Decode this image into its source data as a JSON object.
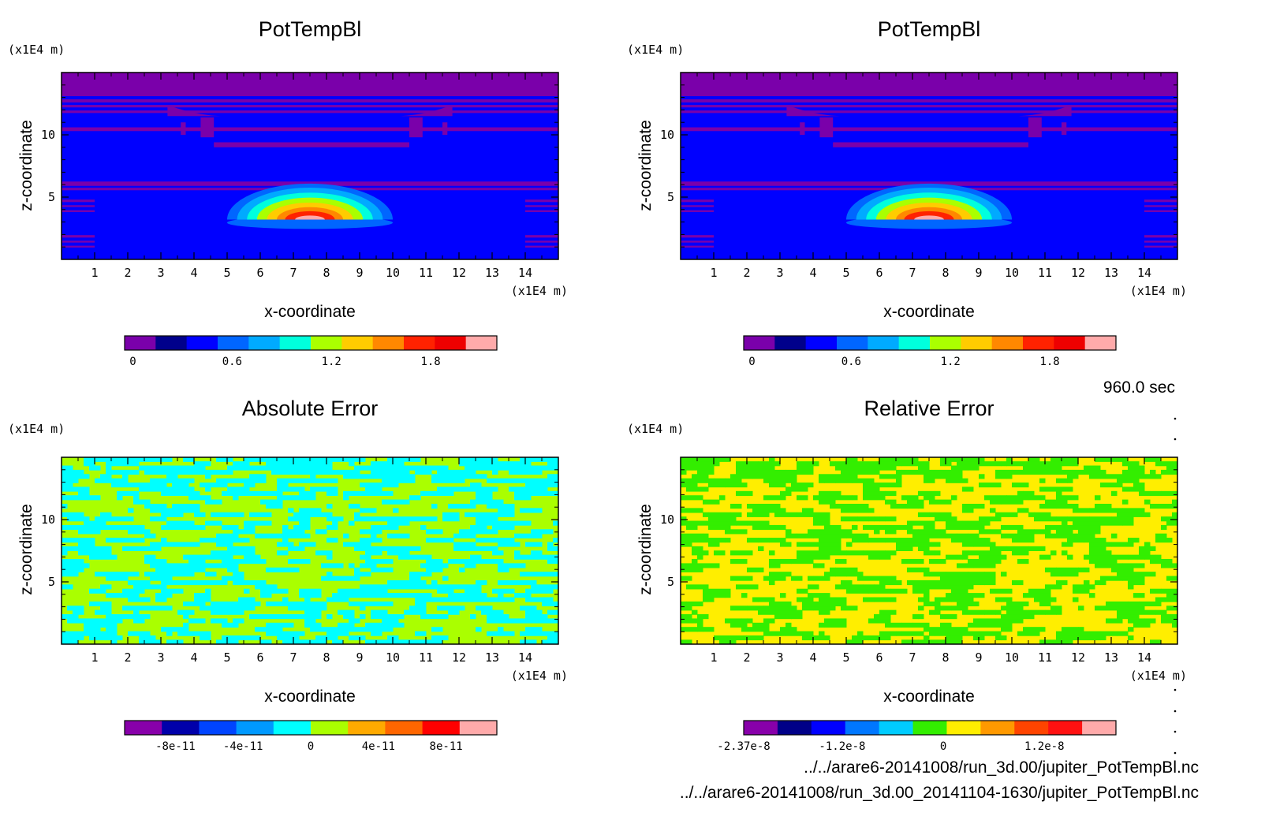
{
  "chart_data": [
    {
      "type": "heatmap",
      "title": "PotTempBl",
      "xlabel": "x-coordinate",
      "ylabel": "z-coordinate",
      "x_unit": "(x1E4 m)",
      "y_unit": "(x1E4 m)",
      "xlim": [
        0,
        15
      ],
      "ylim": [
        0,
        15
      ],
      "x_ticks": [
        1,
        2,
        3,
        4,
        5,
        6,
        7,
        8,
        9,
        10,
        11,
        12,
        13,
        14
      ],
      "y_ticks": [
        5,
        10
      ],
      "field": "potential temperature anomaly with a warm bubble near x=7.5, z=3.8",
      "bubble_center": [
        7.5,
        3.8
      ],
      "colorbar": {
        "labels": [
          "0",
          "0.6",
          "1.2",
          "1.8"
        ],
        "label_values": [
          0,
          0.6,
          1.2,
          1.8
        ],
        "range": [
          -0.05,
          2.2
        ],
        "colors": [
          "#7a00aa",
          "#00008b",
          "#0000ff",
          "#0066ff",
          "#00aaff",
          "#00ffdd",
          "#aaff00",
          "#ffcc00",
          "#ff8800",
          "#ff2200",
          "#ee0000",
          "#ffaaaa"
        ]
      }
    },
    {
      "type": "heatmap",
      "title": "PotTempBl",
      "xlabel": "x-coordinate",
      "ylabel": "z-coordinate",
      "x_unit": "(x1E4 m)",
      "y_unit": "(x1E4 m)",
      "xlim": [
        0,
        15
      ],
      "ylim": [
        0,
        15
      ],
      "x_ticks": [
        1,
        2,
        3,
        4,
        5,
        6,
        7,
        8,
        9,
        10,
        11,
        12,
        13,
        14
      ],
      "y_ticks": [
        5,
        10
      ],
      "field": "potential temperature anomaly with a warm bubble near x=7.5, z=3.8",
      "bubble_center": [
        7.5,
        3.8
      ],
      "colorbar": {
        "labels": [
          "0",
          "0.6",
          "1.2",
          "1.8"
        ],
        "label_values": [
          0,
          0.6,
          1.2,
          1.8
        ],
        "range": [
          -0.05,
          2.2
        ],
        "colors": [
          "#7a00aa",
          "#00008b",
          "#0000ff",
          "#0066ff",
          "#00aaff",
          "#00ffdd",
          "#aaff00",
          "#ffcc00",
          "#ff8800",
          "#ff2200",
          "#ee0000",
          "#ffaaaa"
        ]
      }
    },
    {
      "type": "heatmap",
      "title": "Absolute Error",
      "xlabel": "x-coordinate",
      "ylabel": "z-coordinate",
      "x_unit": "(x1E4 m)",
      "y_unit": "(x1E4 m)",
      "xlim": [
        0,
        15
      ],
      "ylim": [
        0,
        15
      ],
      "x_ticks": [
        1,
        2,
        3,
        4,
        5,
        6,
        7,
        8,
        9,
        10,
        11,
        12,
        13,
        14
      ],
      "y_ticks": [
        5,
        10
      ],
      "field": "noise field mixing two levels (cyan and yellow-green)",
      "colorbar": {
        "labels": [
          "-8e-11",
          "-4e-11",
          "0",
          "4e-11",
          "8e-11"
        ],
        "label_values": [
          -8e-11,
          -4e-11,
          0,
          4e-11,
          8e-11
        ],
        "range": [
          -1.1e-10,
          1.1e-10
        ],
        "colors": [
          "#8800aa",
          "#0000aa",
          "#0044ff",
          "#0099ff",
          "#00ffff",
          "#aaff00",
          "#ffaa00",
          "#ff6600",
          "#ff0000",
          "#ffaaaa"
        ]
      }
    },
    {
      "type": "heatmap",
      "title": "Relative Error",
      "xlabel": "x-coordinate",
      "ylabel": "z-coordinate",
      "x_unit": "(x1E4 m)",
      "y_unit": "(x1E4 m)",
      "xlim": [
        0,
        15
      ],
      "ylim": [
        0,
        15
      ],
      "x_ticks": [
        1,
        2,
        3,
        4,
        5,
        6,
        7,
        8,
        9,
        10,
        11,
        12,
        13,
        14
      ],
      "y_ticks": [
        5,
        10
      ],
      "field": "noise field mixing two levels (green and yellow)",
      "colorbar": {
        "labels": [
          "-2.37e-8",
          "-1.2e-8",
          "0",
          "1.2e-8"
        ],
        "label_values": [
          -2.37e-08,
          -1.2e-08,
          0,
          1.2e-08
        ],
        "range": [
          -2.37e-08,
          2.05e-08
        ],
        "colors": [
          "#8800aa",
          "#000088",
          "#0000ff",
          "#0077ff",
          "#00ccff",
          "#33ee00",
          "#ffee00",
          "#ff9900",
          "#ff4400",
          "#ff1111",
          "#ffaaaa"
        ]
      }
    }
  ],
  "time_label": "960.0 sec",
  "file_1": "../../arare6-20141008/run_3d.00/jupiter_PotTempBl.nc",
  "file_2": "../../arare6-20141008/run_3d.00_20141104-1630/jupiter_PotTempBl.nc"
}
